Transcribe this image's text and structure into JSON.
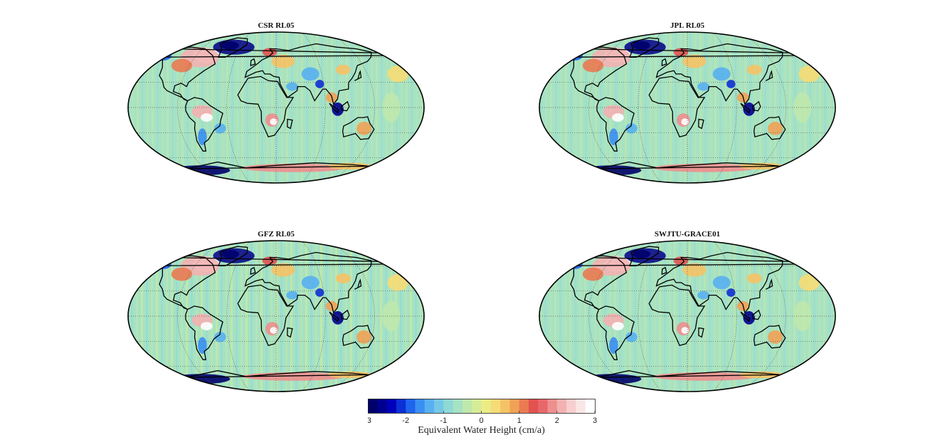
{
  "panels": [
    {
      "title": "CSR RL05"
    },
    {
      "title": "JPL RL05"
    },
    {
      "title": "GFZ RL05"
    },
    {
      "title": "SWJTU-GRACE01"
    }
  ],
  "colorbar": {
    "label": "Equivalent Water Height (cm/a)",
    "ticks": [
      "-3",
      "-2",
      "-1",
      "0",
      "1",
      "2",
      "3"
    ],
    "range": [
      -3,
      3
    ],
    "colors": [
      "#00006a",
      "#00008f",
      "#0000bb",
      "#0c2fd6",
      "#1e64ee",
      "#3a8ff2",
      "#58b0f0",
      "#74c8e6",
      "#8ed8d6",
      "#a6e2c4",
      "#bfe8ad",
      "#d6ec98",
      "#ecec86",
      "#f6dc76",
      "#f6c266",
      "#f0a256",
      "#ea7a52",
      "#e25250",
      "#e8686a",
      "#ee8f8f",
      "#f3b1b1",
      "#f7cfcf",
      "#fbe6e6",
      "#ffffff"
    ]
  }
}
